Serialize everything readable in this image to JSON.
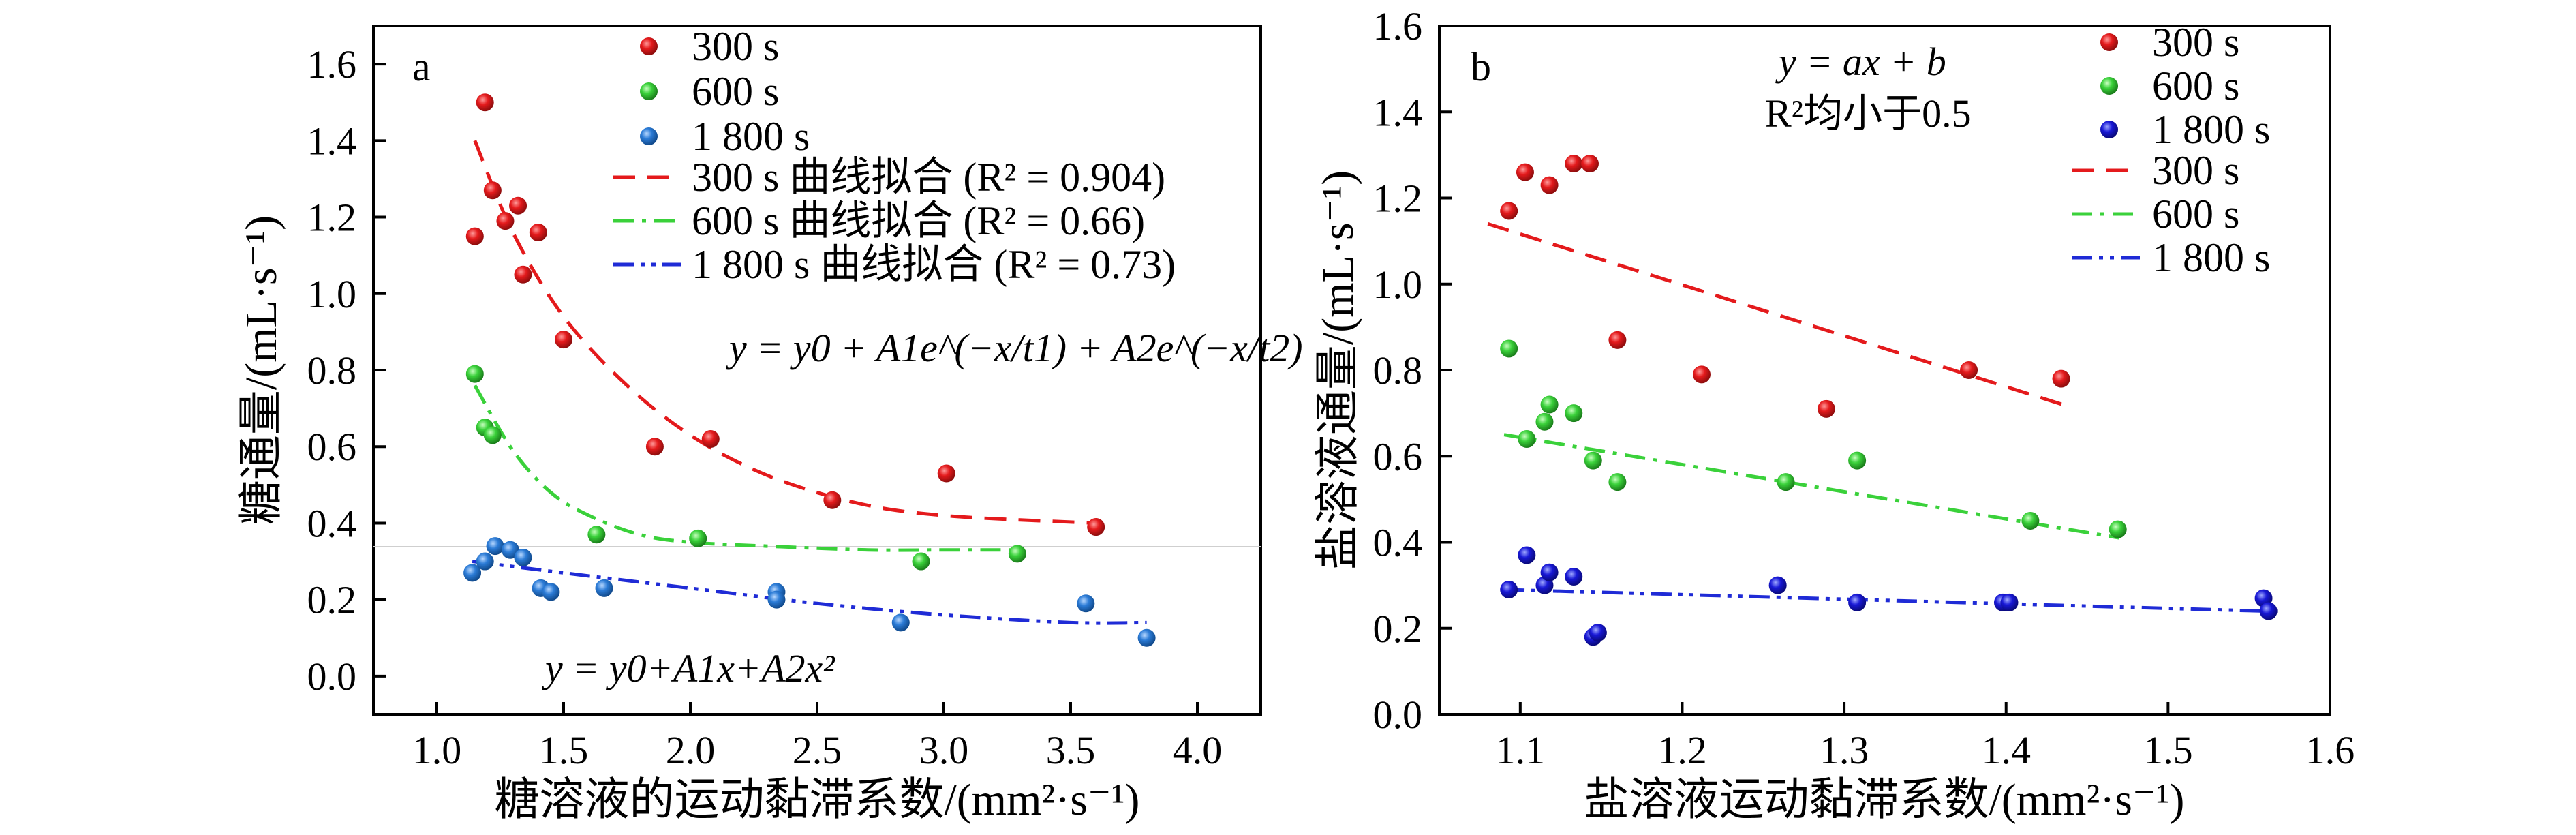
{
  "chart_data": [
    {
      "type": "scatter",
      "panel_label": "a",
      "xlabel": "糖溶液的运动黏滞系数/(mm²·s⁻¹)",
      "ylabel": "糖通量/(mL·s⁻¹)",
      "xlim": [
        0.75,
        4.25
      ],
      "ylim": [
        -0.1,
        1.7
      ],
      "xticks": [
        1.0,
        1.5,
        2.0,
        2.5,
        3.0,
        3.5,
        4.0
      ],
      "xtick_labels": [
        "1.0",
        "1.5",
        "2.0",
        "2.5",
        "3.0",
        "3.5",
        "4.0"
      ],
      "yticks": [
        0.0,
        0.2,
        0.4,
        0.6,
        0.8,
        1.0,
        1.2,
        1.4,
        1.6
      ],
      "ytick_labels": [
        "0.0",
        "0.2",
        "0.4",
        "0.6",
        "0.8",
        "1.0",
        "1.2",
        "1.4",
        "1.6"
      ],
      "equations": [
        "y = y0 + A1e^(−x/t1) + A2e^(−x/t2)",
        "y = y0+A1x+A2x²"
      ],
      "series": [
        {
          "name": "300 s",
          "color": "#e41a1c",
          "kind": "points",
          "x": [
            1.15,
            1.19,
            1.22,
            1.27,
            1.32,
            1.34,
            1.4,
            1.5,
            1.86,
            2.08,
            2.56,
            3.01,
            3.6
          ],
          "y": [
            1.15,
            1.5,
            1.27,
            1.19,
            1.23,
            1.05,
            1.16,
            0.88,
            0.6,
            0.62,
            0.46,
            0.53,
            0.39
          ]
        },
        {
          "name": "600 s",
          "color": "#3ad13a",
          "kind": "points",
          "x": [
            1.15,
            1.19,
            1.22,
            1.63,
            2.03,
            2.91,
            3.29
          ],
          "y": [
            0.79,
            0.65,
            0.63,
            0.37,
            0.36,
            0.3,
            0.32
          ]
        },
        {
          "name": "1 800 s",
          "color": "#2b7bd6",
          "kind": "points",
          "x": [
            1.14,
            1.19,
            1.23,
            1.29,
            1.34,
            1.41,
            1.45,
            1.66,
            2.34,
            2.34,
            2.83,
            3.56,
            3.8
          ],
          "y": [
            0.27,
            0.3,
            0.34,
            0.33,
            0.31,
            0.23,
            0.22,
            0.23,
            0.22,
            0.2,
            0.14,
            0.19,
            0.1
          ]
        },
        {
          "name": "300 s 曲线拟合 (R² = 0.904)",
          "color": "#e41a1c",
          "kind": "fit",
          "dash": "32,18",
          "x": [
            1.15,
            1.3,
            1.5,
            1.75,
            2.0,
            2.25,
            2.5,
            2.75,
            3.0,
            3.25,
            3.6
          ],
          "y": [
            1.4,
            1.16,
            0.94,
            0.76,
            0.63,
            0.54,
            0.48,
            0.44,
            0.42,
            0.41,
            0.4
          ]
        },
        {
          "name": "600 s 曲线拟合 (R² = 0.66)",
          "color": "#3ad13a",
          "kind": "fit",
          "dash": "30,12,6,12",
          "x": [
            1.15,
            1.3,
            1.45,
            1.6,
            1.8,
            2.0,
            2.3,
            2.7,
            3.0,
            3.29
          ],
          "y": [
            0.76,
            0.59,
            0.48,
            0.42,
            0.37,
            0.35,
            0.34,
            0.33,
            0.33,
            0.33
          ]
        },
        {
          "name": "1 800 s 曲线拟合 (R² = 0.73)",
          "color": "#1f2bd6",
          "kind": "fit",
          "dash": "30,10,6,10,6,10",
          "x": [
            1.14,
            1.5,
            2.0,
            2.5,
            3.0,
            3.5,
            3.8
          ],
          "y": [
            0.3,
            0.27,
            0.23,
            0.19,
            0.16,
            0.14,
            0.14
          ]
        }
      ]
    },
    {
      "type": "scatter",
      "panel_label": "b",
      "xlabel": "盐溶液运动黏滞系数/(mm²·s⁻¹)",
      "ylabel": "盐溶液通量/(mL·s⁻¹)",
      "xlim": [
        1.05,
        1.6
      ],
      "ylim": [
        0.0,
        1.6
      ],
      "xticks": [
        1.1,
        1.2,
        1.3,
        1.4,
        1.5,
        1.6
      ],
      "xtick_labels": [
        "1.1",
        "1.2",
        "1.3",
        "1.4",
        "1.5",
        "1.6"
      ],
      "yticks": [
        0.0,
        0.2,
        0.4,
        0.6,
        0.8,
        1.0,
        1.2,
        1.4,
        1.6
      ],
      "ytick_labels": [
        "0.0",
        "0.2",
        "0.4",
        "0.6",
        "0.8",
        "1.0",
        "1.2",
        "1.4",
        "1.6"
      ],
      "equations": [
        "y = ax + b",
        "R²均小于0.5"
      ],
      "series": [
        {
          "name": "300 s",
          "color": "#e41a1c",
          "kind": "points",
          "x": [
            1.093,
            1.103,
            1.118,
            1.133,
            1.143,
            1.16,
            1.212,
            1.289,
            1.377,
            1.434
          ],
          "y": [
            1.17,
            1.26,
            1.23,
            1.28,
            1.28,
            0.87,
            0.79,
            0.71,
            0.8,
            0.78
          ]
        },
        {
          "name": "600 s",
          "color": "#3ad13a",
          "kind": "points",
          "x": [
            1.093,
            1.104,
            1.115,
            1.118,
            1.133,
            1.145,
            1.16,
            1.264,
            1.308,
            1.415,
            1.469
          ],
          "y": [
            0.85,
            0.64,
            0.68,
            0.72,
            0.7,
            0.59,
            0.54,
            0.54,
            0.59,
            0.45,
            0.43
          ]
        },
        {
          "name": "1 800 s",
          "color": "#1818d6",
          "kind": "points",
          "x": [
            1.093,
            1.104,
            1.115,
            1.118,
            1.133,
            1.145,
            1.148,
            1.259,
            1.308,
            1.398,
            1.402,
            1.559,
            1.562
          ],
          "y": [
            0.29,
            0.37,
            0.3,
            0.33,
            0.32,
            0.18,
            0.19,
            0.3,
            0.26,
            0.26,
            0.26,
            0.27,
            0.24
          ]
        },
        {
          "name": "300 s",
          "color": "#e41a1c",
          "kind": "fit",
          "dash": "32,18",
          "x": [
            1.08,
            1.435
          ],
          "y": [
            1.14,
            0.72
          ]
        },
        {
          "name": "600 s",
          "color": "#3ad13a",
          "kind": "fit",
          "dash": "30,12,6,12",
          "x": [
            1.09,
            1.47
          ],
          "y": [
            0.65,
            0.41
          ]
        },
        {
          "name": "1 800 s",
          "color": "#1f2bd6",
          "kind": "fit",
          "dash": "30,10,6,10,6,10",
          "x": [
            1.09,
            1.56
          ],
          "y": [
            0.29,
            0.24
          ]
        }
      ]
    }
  ]
}
